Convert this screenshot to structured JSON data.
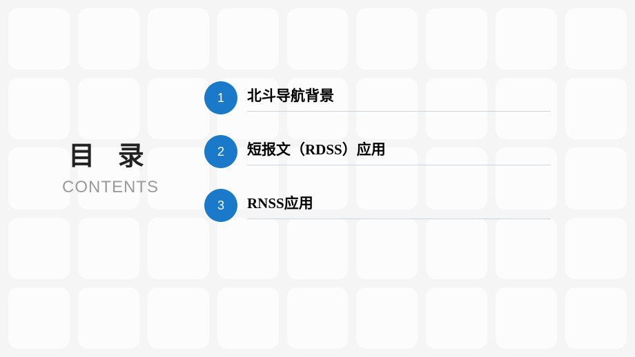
{
  "heading": {
    "main": "目 录",
    "sub": "CONTENTS"
  },
  "toc": {
    "items": [
      {
        "num": "1",
        "label": "北斗导航背景"
      },
      {
        "num": "2",
        "label": "短报文（RDSS）应用"
      },
      {
        "num": "3",
        "label": "RNSS应用"
      }
    ]
  },
  "style": {
    "circle_color": "#1a79c8",
    "circle_text_color": "#ffffff",
    "underline_color": "#c9d4df",
    "bg_color": "#f5f5f5",
    "tile_color": "#fcfcfc",
    "heading_color": "#222222",
    "sub_color": "#9a9a9a",
    "label_color": "#000000",
    "heading_fontsize": 38,
    "sub_fontsize": 24,
    "label_fontsize": 21,
    "circle_fontsize": 18
  }
}
